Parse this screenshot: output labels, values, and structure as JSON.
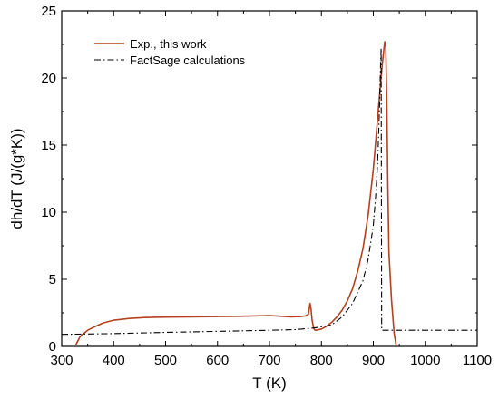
{
  "chart_data": {
    "type": "line",
    "title": "",
    "xlabel": "T (K)",
    "ylabel": "dh/dT (J/(g*K))",
    "xlim": [
      300,
      1100
    ],
    "ylim": [
      0,
      25
    ],
    "x_ticks": [
      "300",
      "400",
      "500",
      "600",
      "700",
      "800",
      "900",
      "1000",
      "1100"
    ],
    "y_ticks": [
      "0",
      "5",
      "10",
      "15",
      "20",
      "25"
    ],
    "legend_position": "top-left",
    "grid": false,
    "series": [
      {
        "name": "Exp., this work",
        "color": "#b5411f",
        "style": "solid",
        "x": [
          327,
          331,
          335,
          340,
          345,
          350,
          360,
          370,
          380,
          400,
          430,
          460,
          500,
          550,
          600,
          650,
          700,
          720,
          740,
          760,
          770,
          775,
          778,
          780,
          782,
          785,
          788,
          790,
          795,
          800,
          810,
          820,
          830,
          840,
          850,
          860,
          870,
          880,
          890,
          900,
          905,
          910,
          914,
          916,
          918,
          920,
          922,
          924,
          926,
          928,
          930,
          935,
          940,
          944
        ],
        "y": [
          0.1,
          0.4,
          0.7,
          0.9,
          1.05,
          1.2,
          1.4,
          1.58,
          1.75,
          1.95,
          2.08,
          2.15,
          2.18,
          2.2,
          2.22,
          2.25,
          2.3,
          2.25,
          2.2,
          2.22,
          2.28,
          2.4,
          3.2,
          2.8,
          2.0,
          1.35,
          1.2,
          1.2,
          1.25,
          1.3,
          1.5,
          1.8,
          2.2,
          2.7,
          3.4,
          4.3,
          5.6,
          7.3,
          9.8,
          13.2,
          15.5,
          17.8,
          19.6,
          20.5,
          21.3,
          22.0,
          22.7,
          22.4,
          18.0,
          12.0,
          7.0,
          3.5,
          1.0,
          0.05
        ]
      },
      {
        "name": "FactSage calculations",
        "color": "#000000",
        "style": "dashdot",
        "x": [
          300,
          400,
          500,
          600,
          700,
          750,
          780,
          800,
          820,
          840,
          860,
          880,
          890,
          900,
          905,
          908,
          910,
          912,
          913,
          914,
          915,
          916,
          1000,
          1100
        ],
        "y": [
          0.9,
          0.95,
          1.05,
          1.12,
          1.2,
          1.25,
          1.35,
          1.45,
          1.6,
          2.2,
          3.2,
          4.9,
          6.5,
          9.0,
          11.5,
          13.5,
          15.5,
          18.0,
          19.5,
          21.0,
          22.2,
          1.2,
          1.2,
          1.2
        ]
      }
    ]
  }
}
